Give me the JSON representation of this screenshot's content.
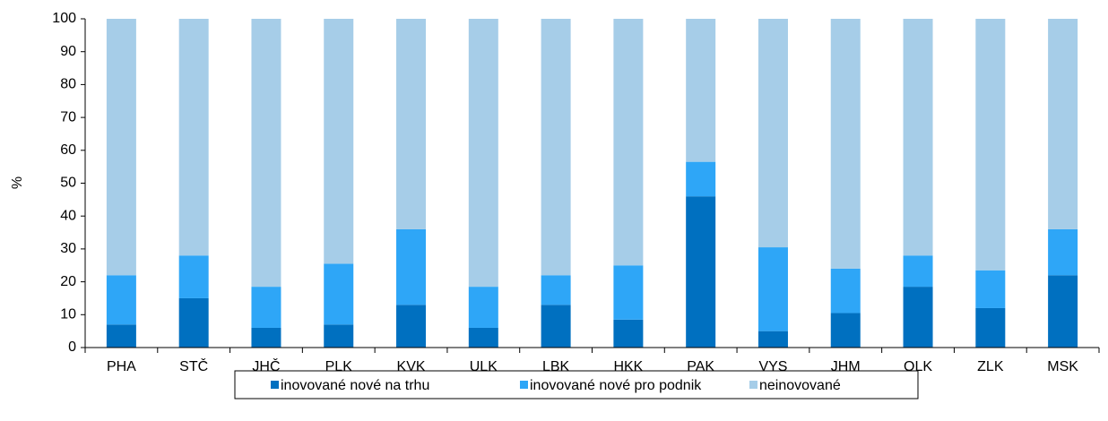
{
  "chart_data": {
    "type": "stacked-bar",
    "categories": [
      "PHA",
      "STČ",
      "JHČ",
      "PLK",
      "KVK",
      "ULK",
      "LBK",
      "HKK",
      "PAK",
      "VYS",
      "JHM",
      "OLK",
      "ZLK",
      "MSK"
    ],
    "y_label": "%",
    "series": [
      {
        "name": "inovované nové na trhu",
        "color": "#0070c0",
        "values": [
          7,
          15,
          6,
          7,
          13,
          6,
          13,
          8.5,
          46,
          5,
          10.5,
          18.5,
          12,
          22
        ]
      },
      {
        "name": "inovované nové pro podnik",
        "color": "#2ea6f7",
        "values": [
          15,
          13,
          12.5,
          18.5,
          23,
          12.5,
          9,
          16.5,
          10.5,
          25.5,
          13.5,
          9.5,
          11.5,
          14
        ]
      },
      {
        "name": "neinovované",
        "color": "#a6cde8",
        "values": [
          78,
          72,
          81.5,
          74.5,
          64,
          81.5,
          78,
          75,
          43.5,
          69.5,
          76,
          72,
          76.5,
          64
        ]
      }
    ],
    "ylim": [
      0,
      100
    ],
    "yticks": [
      0,
      10,
      20,
      30,
      40,
      50,
      60,
      70,
      80,
      90,
      100
    ]
  }
}
